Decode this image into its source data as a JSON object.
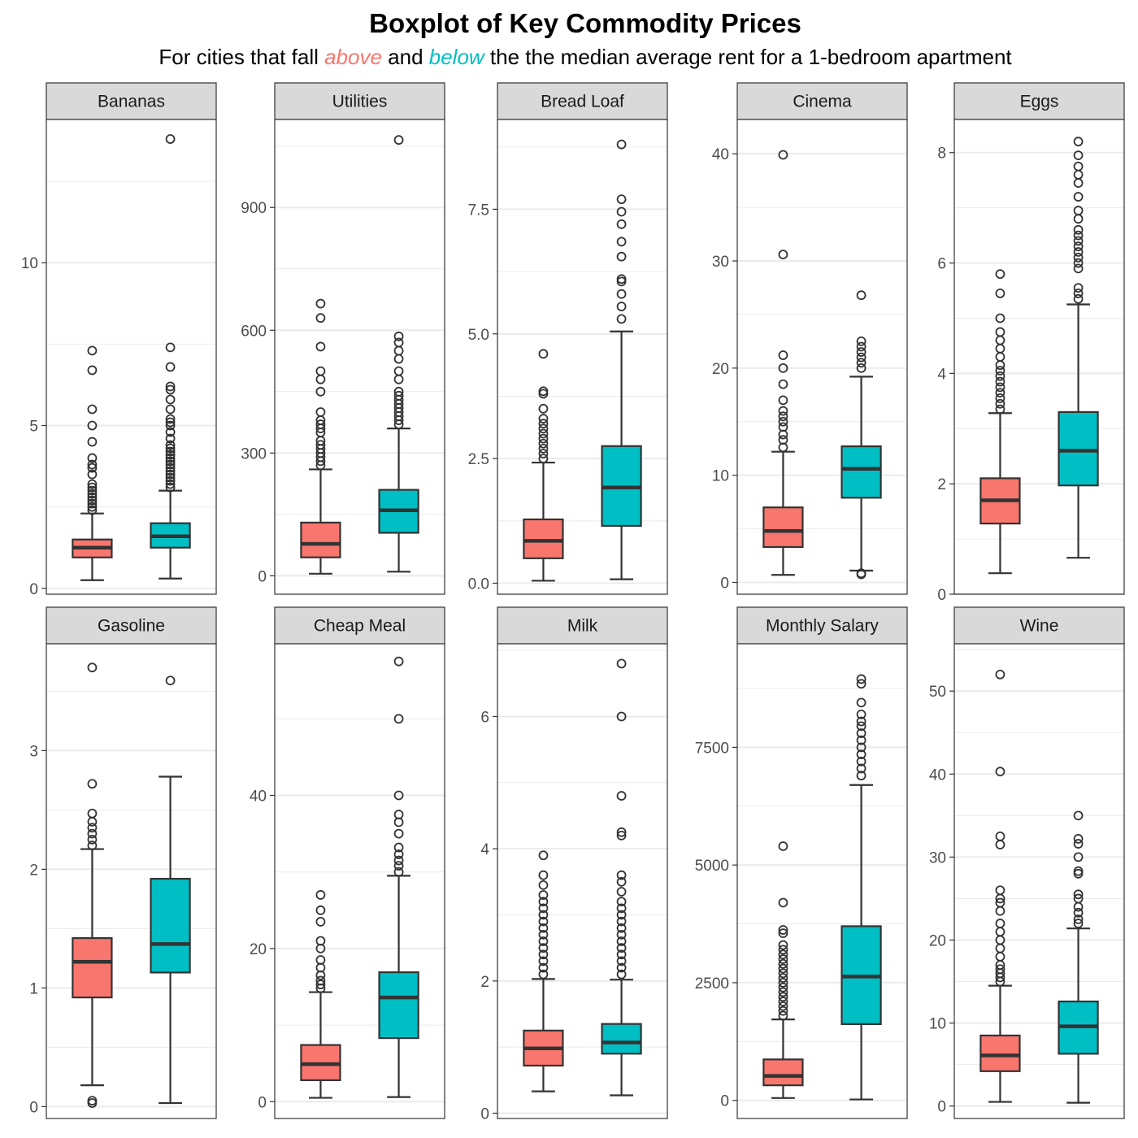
{
  "chart_data": {
    "type": "boxplot",
    "title": "Boxplot of Key Commodity Prices",
    "subtitle": {
      "prefix": "For cities that fall ",
      "above": "above",
      "middle": " and ",
      "below": "below",
      "suffix": " the the median average rent for a 1-bedroom apartment"
    },
    "groups": [
      "above",
      "below"
    ],
    "colors": {
      "above": "#F8766D",
      "below": "#00BFC4",
      "strip": "#D9D9D9",
      "grid": "#EBEBEB",
      "box_line": "#333333"
    },
    "panels": [
      {
        "name": "Bananas",
        "ylim": [
          -0.18,
          14.4
        ],
        "breaks": [
          0,
          5,
          10
        ],
        "labels": [
          "0",
          "5",
          "10"
        ],
        "above": {
          "min": 0.25,
          "q1": 0.95,
          "median": 1.25,
          "q3": 1.5,
          "max": 2.3,
          "outliers": [
            2.4,
            2.5,
            2.6,
            2.7,
            2.8,
            2.9,
            3.0,
            3.1,
            3.2,
            3.5,
            3.7,
            3.8,
            4.0,
            4.5,
            5.0,
            5.5,
            6.7,
            7.3
          ]
        },
        "below": {
          "min": 0.3,
          "q1": 1.25,
          "median": 1.6,
          "q3": 2.0,
          "max": 3.0,
          "outliers": [
            3.1,
            3.2,
            3.3,
            3.4,
            3.5,
            3.6,
            3.7,
            3.8,
            3.9,
            4.0,
            4.1,
            4.2,
            4.3,
            4.4,
            4.6,
            4.8,
            5.0,
            5.1,
            5.2,
            5.5,
            5.8,
            6.1,
            6.2,
            6.8,
            7.4,
            13.8
          ]
        }
      },
      {
        "name": "Utilities",
        "ylim": [
          -45,
          1115
        ],
        "breaks": [
          0,
          300,
          600,
          900
        ],
        "labels": [
          "0",
          "300",
          "600",
          "900"
        ],
        "above": {
          "min": 5,
          "q1": 45,
          "median": 78,
          "q3": 130,
          "max": 260,
          "outliers": [
            270,
            280,
            290,
            300,
            310,
            320,
            330,
            350,
            360,
            370,
            380,
            400,
            450,
            480,
            500,
            560,
            630,
            665
          ]
        },
        "below": {
          "min": 10,
          "q1": 105,
          "median": 160,
          "q3": 210,
          "max": 360,
          "outliers": [
            370,
            380,
            390,
            400,
            410,
            420,
            430,
            440,
            450,
            480,
            500,
            530,
            550,
            570,
            585,
            1065
          ]
        }
      },
      {
        "name": "Bread Loaf",
        "ylim": [
          -0.22,
          9.3
        ],
        "breaks": [
          0,
          2.5,
          5,
          7.5
        ],
        "labels": [
          "0.0",
          "2.5",
          "5.0",
          "7.5"
        ],
        "above": {
          "min": 0.05,
          "q1": 0.5,
          "median": 0.85,
          "q3": 1.28,
          "max": 2.42,
          "outliers": [
            2.5,
            2.6,
            2.7,
            2.8,
            2.9,
            3.0,
            3.1,
            3.2,
            3.3,
            3.5,
            3.8,
            3.85,
            4.6
          ]
        },
        "below": {
          "min": 0.08,
          "q1": 1.15,
          "median": 1.92,
          "q3": 2.75,
          "max": 5.05,
          "outliers": [
            5.3,
            5.55,
            5.8,
            6.05,
            6.1,
            6.55,
            6.85,
            7.2,
            7.45,
            7.7,
            8.8
          ]
        }
      },
      {
        "name": "Cinema",
        "ylim": [
          -1.1,
          43.2
        ],
        "breaks": [
          0,
          10,
          20,
          30,
          40
        ],
        "labels": [
          "0",
          "10",
          "20",
          "30",
          "40"
        ],
        "above": {
          "min": 0.7,
          "q1": 3.3,
          "median": 4.8,
          "q3": 7.0,
          "max": 12.2,
          "outliers": [
            12.6,
            13.3,
            13.8,
            14.5,
            15.0,
            15.5,
            16.0,
            17.0,
            18.5,
            20.0,
            21.2,
            30.6,
            39.9
          ]
        },
        "below": {
          "min": 1.1,
          "q1": 7.9,
          "median": 10.6,
          "q3": 12.7,
          "max": 19.2,
          "outliers": [
            0.75,
            0.85,
            20.0,
            20.5,
            21.0,
            21.5,
            22.0,
            22.5,
            26.8
          ]
        }
      },
      {
        "name": "Eggs",
        "ylim": [
          0,
          8.6
        ],
        "breaks": [
          0,
          2,
          4,
          6,
          8
        ],
        "labels": [
          "0",
          "2",
          "4",
          "6",
          "8"
        ],
        "above": {
          "min": 0.38,
          "q1": 1.28,
          "median": 1.7,
          "q3": 2.1,
          "max": 3.28,
          "outliers": [
            3.35,
            3.45,
            3.55,
            3.65,
            3.75,
            3.85,
            3.95,
            4.05,
            4.15,
            4.3,
            4.45,
            4.6,
            4.75,
            5.0,
            5.45,
            5.8
          ]
        },
        "below": {
          "min": 0.66,
          "q1": 1.97,
          "median": 2.6,
          "q3": 3.3,
          "max": 5.25,
          "outliers": [
            5.35,
            5.45,
            5.55,
            5.9,
            6.0,
            6.1,
            6.2,
            6.3,
            6.4,
            6.5,
            6.6,
            6.8,
            6.95,
            7.2,
            7.45,
            7.6,
            7.75,
            7.95,
            8.2
          ]
        }
      },
      {
        "name": "Gasoline",
        "ylim": [
          -0.1,
          3.9
        ],
        "breaks": [
          0,
          1,
          2,
          3
        ],
        "labels": [
          "0",
          "1",
          "2",
          "3"
        ],
        "above": {
          "min": 0.18,
          "q1": 0.92,
          "median": 1.22,
          "q3": 1.42,
          "max": 2.17,
          "outliers": [
            0.03,
            0.05,
            2.2,
            2.25,
            2.3,
            2.35,
            2.4,
            2.47,
            2.72,
            3.7
          ]
        },
        "below": {
          "min": 0.03,
          "q1": 1.13,
          "median": 1.37,
          "q3": 1.92,
          "max": 2.78,
          "outliers": [
            3.59
          ]
        }
      },
      {
        "name": "Cheap Meal",
        "ylim": [
          -2.2,
          59.8
        ],
        "breaks": [
          0,
          20,
          40
        ],
        "labels": [
          "0",
          "20",
          "40"
        ],
        "above": {
          "min": 0.5,
          "q1": 2.8,
          "median": 4.9,
          "q3": 7.4,
          "max": 14.3,
          "outliers": [
            14.8,
            15.3,
            15.8,
            16.5,
            17.5,
            18.5,
            20.0,
            21.0,
            23.5,
            25.0,
            27.0
          ]
        },
        "below": {
          "min": 0.6,
          "q1": 8.3,
          "median": 13.6,
          "q3": 16.9,
          "max": 29.5,
          "outliers": [
            30.0,
            30.8,
            31.5,
            32.3,
            33.2,
            35.0,
            36.5,
            37.5,
            40.0,
            50.0,
            57.5
          ]
        }
      },
      {
        "name": "Milk",
        "ylim": [
          -0.08,
          7.1
        ],
        "breaks": [
          0,
          2,
          4,
          6
        ],
        "labels": [
          "0",
          "2",
          "4",
          "6"
        ],
        "above": {
          "min": 0.33,
          "q1": 0.72,
          "median": 0.98,
          "q3": 1.25,
          "max": 2.03,
          "outliers": [
            2.1,
            2.2,
            2.3,
            2.4,
            2.5,
            2.6,
            2.7,
            2.8,
            2.9,
            3.0,
            3.1,
            3.2,
            3.3,
            3.45,
            3.6,
            3.9
          ]
        },
        "below": {
          "min": 0.27,
          "q1": 0.9,
          "median": 1.07,
          "q3": 1.35,
          "max": 2.02,
          "outliers": [
            2.1,
            2.2,
            2.3,
            2.4,
            2.5,
            2.6,
            2.7,
            2.8,
            2.9,
            3.0,
            3.1,
            3.2,
            3.35,
            3.5,
            3.6,
            4.2,
            4.25,
            4.8,
            6.0,
            6.8
          ]
        }
      },
      {
        "name": "Monthly Salary",
        "ylim": [
          -385,
          9700
        ],
        "breaks": [
          0,
          2500,
          5000,
          7500
        ],
        "labels": [
          "0",
          "2500",
          "5000",
          "7500"
        ],
        "above": {
          "min": 50,
          "q1": 320,
          "median": 520,
          "q3": 870,
          "max": 1720,
          "outliers": [
            1800,
            1900,
            2000,
            2100,
            2200,
            2300,
            2400,
            2500,
            2600,
            2700,
            2800,
            2900,
            3000,
            3100,
            3200,
            3300,
            3550,
            3620,
            4200,
            5400
          ]
        },
        "below": {
          "min": 20,
          "q1": 1620,
          "median": 2630,
          "q3": 3700,
          "max": 6700,
          "outliers": [
            6900,
            7050,
            7200,
            7350,
            7500,
            7650,
            7800,
            7950,
            8050,
            8200,
            8450,
            8850,
            8950
          ]
        }
      },
      {
        "name": "Wine",
        "ylim": [
          -1.5,
          55.7
        ],
        "breaks": [
          0,
          10,
          20,
          30,
          40,
          50
        ],
        "labels": [
          "0",
          "10",
          "20",
          "30",
          "40",
          "50"
        ],
        "above": {
          "min": 0.5,
          "q1": 4.2,
          "median": 6.1,
          "q3": 8.5,
          "max": 14.5,
          "outliers": [
            15.0,
            15.5,
            16.0,
            16.5,
            17.0,
            18.0,
            19.0,
            20.0,
            21.0,
            22.0,
            23.5,
            24.5,
            25.0,
            26.0,
            31.5,
            32.5,
            40.3,
            52.0
          ]
        },
        "below": {
          "min": 0.4,
          "q1": 6.3,
          "median": 9.6,
          "q3": 12.6,
          "max": 21.4,
          "outliers": [
            22.0,
            22.5,
            23.3,
            24.0,
            25.0,
            25.5,
            28.0,
            28.3,
            30.0,
            31.6,
            32.2,
            35.0
          ]
        }
      }
    ]
  }
}
